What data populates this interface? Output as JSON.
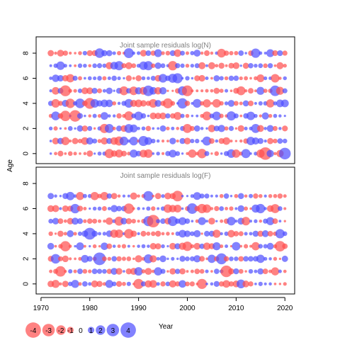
{
  "chart_data": {
    "type": "scatter",
    "subtype": "bubble",
    "xlabel": "Year",
    "ylabel": "Age",
    "x_ticks": [
      1970,
      1980,
      1990,
      2000,
      2010,
      2020
    ],
    "y_ticks": [
      0,
      2,
      4,
      6,
      8
    ],
    "xlim": [
      1969,
      2022
    ],
    "years": [
      1972,
      2020
    ],
    "colors": {
      "positive": "#4d4dff",
      "negative": "#ff4d4d"
    },
    "panels": [
      {
        "title": "Joint sample residuals log(N)",
        "ylim": [
          -0.8,
          9.3
        ],
        "ages": [
          0,
          1,
          2,
          3,
          4,
          5,
          6,
          7,
          8
        ],
        "seed": 17
      },
      {
        "title": "Joint sample residuals log(F)",
        "ylim": [
          -0.8,
          9.3
        ],
        "ages": [
          0,
          1,
          2,
          3,
          4,
          5,
          6,
          7
        ],
        "seed": 91
      }
    ],
    "legend": {
      "values": [
        -4,
        -3,
        -2,
        -1,
        0,
        1,
        2,
        3,
        4
      ],
      "labels": [
        "-4",
        "-3",
        "-2",
        "-1",
        "0",
        "1",
        "2",
        "3",
        "4"
      ]
    }
  }
}
